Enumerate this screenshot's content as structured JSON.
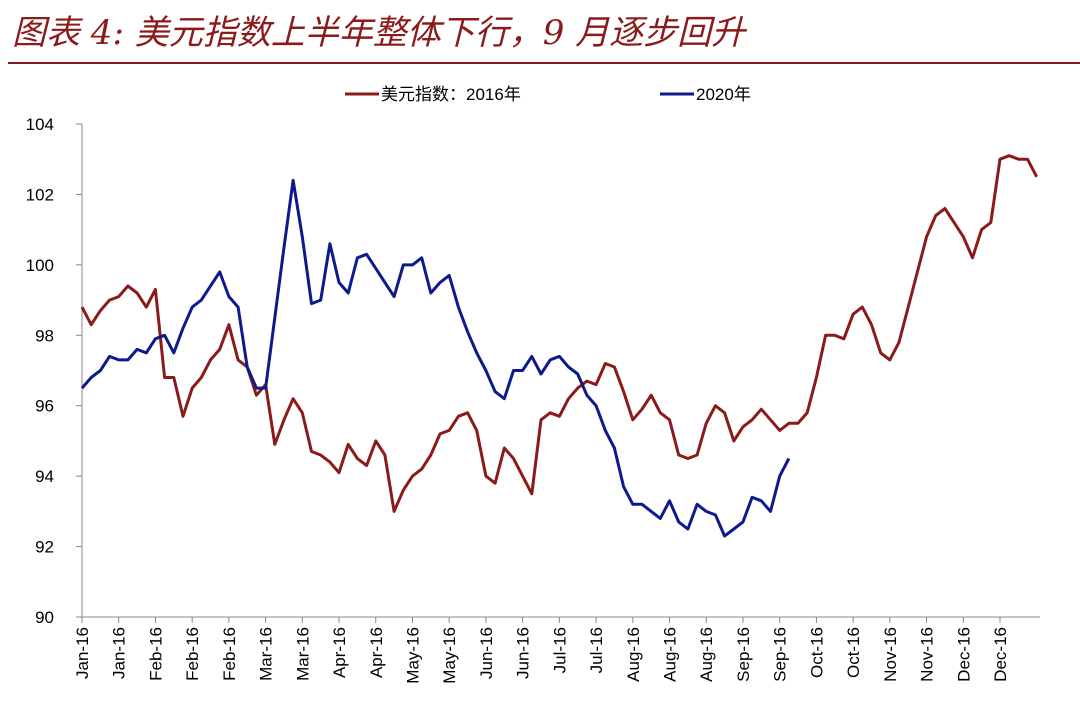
{
  "chart_data": {
    "type": "line",
    "title": "图表 4: 美元指数上半年整体下行，9 月逐步回升",
    "categories": [
      "Jan-16",
      null,
      null,
      null,
      "Jan-16",
      null,
      null,
      null,
      "Feb-16",
      null,
      null,
      null,
      "Feb-16",
      null,
      null,
      null,
      "Feb-16",
      null,
      null,
      null,
      "Mar-16",
      null,
      null,
      null,
      "Mar-16",
      null,
      null,
      null,
      "Apr-16",
      null,
      null,
      null,
      "Apr-16",
      null,
      null,
      null,
      "May-16",
      null,
      null,
      null,
      "May-16",
      null,
      null,
      null,
      "Jun-16",
      null,
      null,
      null,
      "Jun-16",
      null,
      null,
      null,
      "Jul-16",
      null,
      null,
      null,
      "Jul-16",
      null,
      null,
      null,
      "Aug-16",
      null,
      null,
      null,
      "Aug-16",
      null,
      null,
      null,
      "Aug-16",
      null,
      null,
      null,
      "Sep-16",
      null,
      null,
      null,
      "Sep-16",
      null,
      null,
      null,
      "Oct-16",
      null,
      null,
      null,
      "Oct-16",
      null,
      null,
      null,
      "Nov-16",
      null,
      null,
      null,
      "Nov-16",
      null,
      null,
      null,
      "Dec-16",
      null,
      null,
      null,
      "Dec-16",
      null,
      null,
      null,
      null
    ],
    "series": [
      {
        "name": "美元指数：2016年",
        "color": "#8b1a1a",
        "values": [
          98.8,
          98.3,
          98.7,
          99.0,
          99.1,
          99.4,
          99.2,
          98.8,
          99.3,
          96.8,
          96.8,
          95.7,
          96.5,
          96.8,
          97.3,
          97.6,
          98.3,
          97.3,
          97.1,
          96.3,
          96.6,
          94.9,
          95.6,
          96.2,
          95.8,
          94.7,
          94.6,
          94.4,
          94.1,
          94.9,
          94.5,
          94.3,
          95.0,
          94.6,
          93.0,
          93.6,
          94.0,
          94.2,
          94.6,
          95.2,
          95.3,
          95.7,
          95.8,
          95.3,
          94.0,
          93.8,
          94.8,
          94.5,
          94.0,
          93.5,
          95.6,
          95.8,
          95.7,
          96.2,
          96.5,
          96.7,
          96.6,
          97.2,
          97.1,
          96.4,
          95.6,
          95.9,
          96.3,
          95.8,
          95.6,
          94.6,
          94.5,
          94.6,
          95.5,
          96.0,
          95.8,
          95.0,
          95.4,
          95.6,
          95.9,
          95.6,
          95.3,
          95.5,
          95.5,
          95.8,
          96.8,
          98.0,
          98.0,
          97.9,
          98.6,
          98.8,
          98.3,
          97.5,
          97.3,
          97.8,
          98.8,
          99.8,
          100.8,
          101.4,
          101.6,
          101.2,
          100.8,
          100.2,
          101.0,
          101.2,
          103.0,
          103.1,
          103.0,
          103.0,
          102.5
        ]
      },
      {
        "name": "2020年",
        "color": "#0d1a8c",
        "values": [
          96.5,
          96.8,
          97.0,
          97.4,
          97.3,
          97.3,
          97.6,
          97.5,
          97.9,
          98.0,
          97.5,
          98.2,
          98.8,
          99.0,
          99.4,
          99.8,
          99.1,
          98.8,
          97.1,
          96.5,
          96.5,
          98.5,
          100.5,
          102.4,
          100.8,
          98.9,
          99.0,
          100.6,
          99.5,
          99.2,
          100.2,
          100.3,
          99.9,
          99.5,
          99.1,
          100.0,
          100.0,
          100.2,
          99.2,
          99.5,
          99.7,
          98.8,
          98.1,
          97.5,
          97.0,
          96.4,
          96.2,
          97.0,
          97.0,
          97.4,
          96.9,
          97.3,
          97.4,
          97.1,
          96.9,
          96.3,
          96.0,
          95.3,
          94.8,
          93.7,
          93.2,
          93.2,
          93.0,
          92.8,
          93.3,
          92.7,
          92.5,
          93.2,
          93.0,
          92.9,
          92.3,
          92.5,
          92.7,
          93.4,
          93.3,
          93.0,
          94.0,
          94.5,
          null,
          null,
          null,
          null,
          null,
          null,
          null,
          null,
          null,
          null,
          null,
          null,
          null,
          null,
          null,
          null,
          null,
          null,
          null,
          null,
          null,
          null,
          null,
          null,
          null,
          null,
          null
        ]
      }
    ],
    "ylim": [
      90,
      104
    ],
    "yticks": [
      90,
      92,
      94,
      96,
      98,
      100,
      102,
      104
    ],
    "grid": false,
    "legend": "top"
  }
}
